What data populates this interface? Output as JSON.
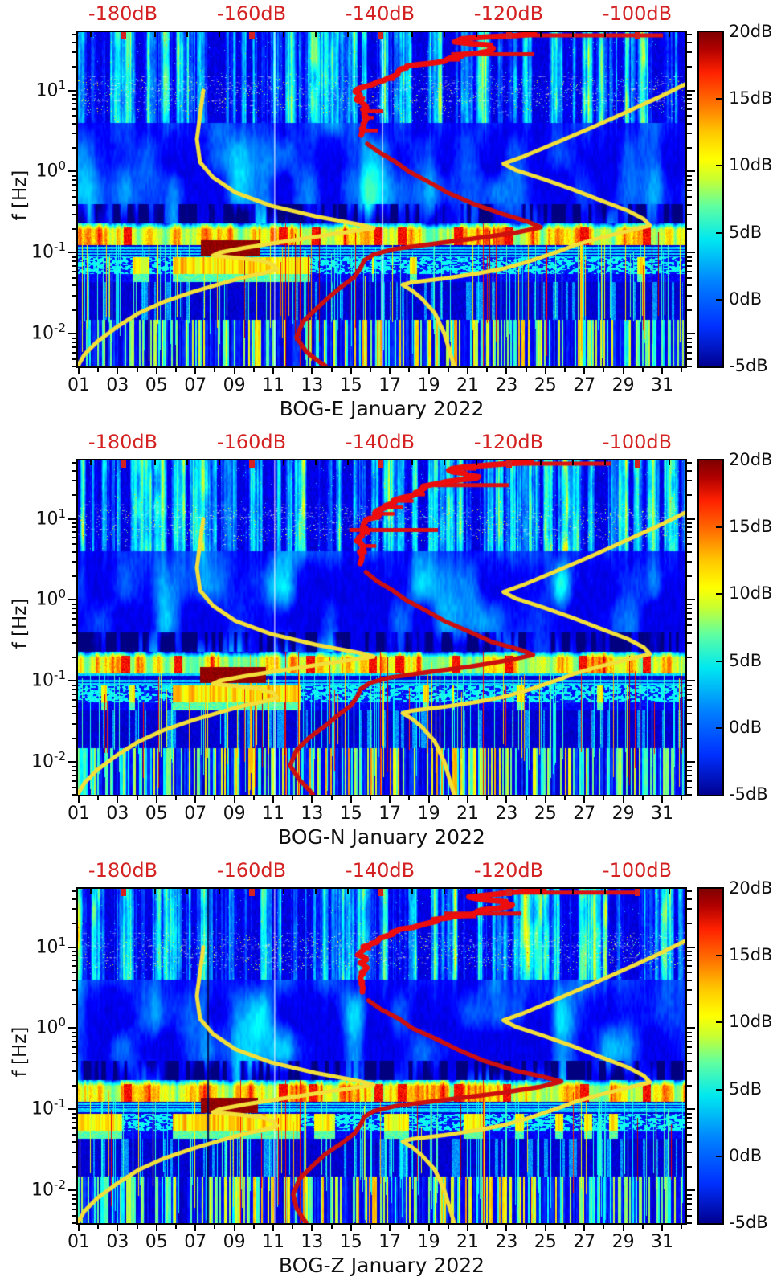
{
  "figure": {
    "background": "#ffffff",
    "label_red": "#d42222",
    "curve_yellow": "#f2df3a",
    "curve_red": "#cc1010",
    "text_color": "#111111"
  },
  "chart_data": {
    "type": "heatmap",
    "colormap": "jet",
    "x_axis": {
      "tick_labels": [
        "01",
        "03",
        "05",
        "07",
        "09",
        "11",
        "13",
        "15",
        "17",
        "19",
        "21",
        "23",
        "25",
        "27",
        "29",
        "31"
      ],
      "tick_days": [
        1,
        3,
        5,
        7,
        9,
        11,
        13,
        15,
        17,
        19,
        21,
        23,
        25,
        27,
        29,
        31
      ],
      "range_days": [
        1,
        32.3
      ]
    },
    "top_axis": {
      "unit": "dB",
      "tick_labels": [
        "-180dB",
        "-160dB",
        "-140dB",
        "-120dB",
        "-100dB"
      ],
      "tick_values_db": [
        -180,
        -160,
        -140,
        -120,
        -100
      ],
      "range_db": [
        -187.3,
        -92.3
      ]
    },
    "y_axis": {
      "label": "f [Hz]",
      "tick_exponents": [
        1,
        0,
        -1,
        -2
      ],
      "log10_range": [
        -2.405,
        1.72
      ]
    },
    "colorbar": {
      "tick_labels": [
        "20dB",
        "15dB",
        "10dB",
        "5dB",
        "0dB",
        "-5dB"
      ],
      "tick_values_db": [
        20,
        15,
        10,
        5,
        0,
        -5
      ],
      "range_db": [
        -5,
        20
      ]
    },
    "overlays": {
      "noise_model_low_f_db": [
        [
          10,
          -167.5
        ],
        [
          5,
          -168
        ],
        [
          2.5,
          -168.5
        ],
        [
          1.3,
          -168
        ],
        [
          0.85,
          -166
        ],
        [
          0.55,
          -162.5
        ],
        [
          0.38,
          -157
        ],
        [
          0.28,
          -150
        ],
        [
          0.22,
          -143
        ],
        [
          0.2,
          -141
        ],
        [
          0.17,
          -147
        ],
        [
          0.14,
          -154
        ],
        [
          0.115,
          -161
        ],
        [
          0.1,
          -165
        ],
        [
          0.092,
          -166
        ],
        [
          0.086,
          -162
        ],
        [
          0.08,
          -158.5
        ],
        [
          0.07,
          -156.5
        ],
        [
          0.062,
          -156
        ],
        [
          0.056,
          -158
        ],
        [
          0.05,
          -161
        ],
        [
          0.042,
          -164.5
        ],
        [
          0.033,
          -169
        ],
        [
          0.025,
          -173.5
        ],
        [
          0.018,
          -177.5
        ],
        [
          0.012,
          -181
        ],
        [
          0.008,
          -184
        ],
        [
          0.0055,
          -186
        ],
        [
          0.004,
          -187
        ]
      ],
      "noise_model_high_f_db": [
        [
          12,
          -92.5
        ],
        [
          8,
          -97
        ],
        [
          5.5,
          -101.5
        ],
        [
          3.5,
          -107
        ],
        [
          2.2,
          -113
        ],
        [
          1.5,
          -118
        ],
        [
          1.25,
          -120.8
        ],
        [
          1.05,
          -119
        ],
        [
          0.8,
          -114.5
        ],
        [
          0.6,
          -110
        ],
        [
          0.45,
          -106
        ],
        [
          0.33,
          -101.5
        ],
        [
          0.26,
          -99
        ],
        [
          0.215,
          -98
        ],
        [
          0.18,
          -102
        ],
        [
          0.15,
          -106
        ],
        [
          0.125,
          -109.5
        ],
        [
          0.105,
          -112
        ],
        [
          0.09,
          -114.5
        ],
        [
          0.075,
          -117.5
        ],
        [
          0.063,
          -121
        ],
        [
          0.055,
          -125
        ],
        [
          0.048,
          -130
        ],
        [
          0.043,
          -135
        ],
        [
          0.04,
          -136.5
        ],
        [
          0.034,
          -135
        ],
        [
          0.027,
          -133.5
        ],
        [
          0.018,
          -131.5
        ],
        [
          0.01,
          -130
        ],
        [
          0.004,
          -128.5
        ]
      ]
    },
    "panels": [
      {
        "station": "BOG-E",
        "title": "BOG-E January 2022",
        "seed": 11,
        "median_psd_f_db": [
          [
            50,
            -116
          ],
          [
            47,
            -122
          ],
          [
            44,
            -127
          ],
          [
            40,
            -130
          ],
          [
            36,
            -126
          ],
          [
            33,
            -124
          ],
          [
            30,
            -127
          ],
          [
            26,
            -130
          ],
          [
            22,
            -133
          ],
          [
            18,
            -136
          ],
          [
            15,
            -138
          ],
          [
            12,
            -141
          ],
          [
            10,
            -143
          ],
          [
            8,
            -144.5
          ],
          [
            6.5,
            -144
          ],
          [
            5,
            -143
          ],
          [
            4,
            -143.2
          ],
          [
            3,
            -143
          ],
          [
            2.2,
            -142
          ],
          [
            1.7,
            -140
          ],
          [
            1.3,
            -137.5
          ],
          [
            1,
            -135.5
          ],
          [
            0.75,
            -132.5
          ],
          [
            0.55,
            -129.5
          ],
          [
            0.4,
            -125.5
          ],
          [
            0.3,
            -121
          ],
          [
            0.24,
            -117
          ],
          [
            0.205,
            -115
          ],
          [
            0.175,
            -119
          ],
          [
            0.15,
            -125
          ],
          [
            0.13,
            -131
          ],
          [
            0.11,
            -138
          ],
          [
            0.095,
            -141
          ],
          [
            0.08,
            -142.5
          ],
          [
            0.065,
            -143
          ],
          [
            0.05,
            -144
          ],
          [
            0.038,
            -146
          ],
          [
            0.028,
            -148
          ],
          [
            0.02,
            -150
          ],
          [
            0.014,
            -152
          ],
          [
            0.009,
            -153
          ],
          [
            0.006,
            -151.5
          ],
          [
            0.0045,
            -149.5
          ],
          [
            0.004,
            -148.5
          ]
        ],
        "psd_spurs": [
          {
            "f_hz": 48,
            "to_db": -96
          },
          {
            "f_hz": 28,
            "to_db": -116
          }
        ],
        "hot_blob": {
          "day_start": 7.25,
          "day_end": 10.3,
          "f_low_hz": 0.09,
          "f_high_hz": 0.145
        },
        "band_hot_spot_days": [
          3.5,
          11.5,
          13.2,
          16.4,
          17.6,
          20.5,
          23.1,
          27,
          30.2
        ],
        "red_spike_days": [
          11.6,
          12.35,
          21.8,
          26.7
        ],
        "white_line_days": [
          11.05,
          16.6
        ],
        "bright_band_days": [
          5.8,
          12.4
        ]
      },
      {
        "station": "BOG-N",
        "title": "BOG-N January 2022",
        "seed": 23,
        "median_psd_f_db": [
          [
            50,
            -117
          ],
          [
            47,
            -123
          ],
          [
            44,
            -128
          ],
          [
            40,
            -130.5
          ],
          [
            36,
            -127
          ],
          [
            33,
            -125
          ],
          [
            30,
            -128
          ],
          [
            26,
            -131
          ],
          [
            22,
            -134
          ],
          [
            18,
            -137
          ],
          [
            15,
            -139
          ],
          [
            12,
            -141.5
          ],
          [
            10,
            -143
          ],
          [
            8,
            -144.5
          ],
          [
            6.5,
            -144
          ],
          [
            5,
            -143.2
          ],
          [
            4,
            -143.4
          ],
          [
            3,
            -143.2
          ],
          [
            2.2,
            -142.2
          ],
          [
            1.7,
            -140.5
          ],
          [
            1.3,
            -138
          ],
          [
            1,
            -136
          ],
          [
            0.75,
            -133
          ],
          [
            0.55,
            -130
          ],
          [
            0.4,
            -126
          ],
          [
            0.3,
            -122.5
          ],
          [
            0.24,
            -118
          ],
          [
            0.21,
            -116.2
          ],
          [
            0.18,
            -120
          ],
          [
            0.15,
            -126
          ],
          [
            0.13,
            -132
          ],
          [
            0.11,
            -138.5
          ],
          [
            0.095,
            -141.5
          ],
          [
            0.08,
            -143
          ],
          [
            0.065,
            -143.5
          ],
          [
            0.05,
            -144.5
          ],
          [
            0.038,
            -146.5
          ],
          [
            0.028,
            -148.5
          ],
          [
            0.02,
            -151
          ],
          [
            0.014,
            -153
          ],
          [
            0.009,
            -154
          ],
          [
            0.006,
            -152.5
          ],
          [
            0.0045,
            -151
          ],
          [
            0.004,
            -150.5
          ]
        ],
        "psd_spurs": [
          {
            "f_hz": 48,
            "to_db": -104
          },
          {
            "f_hz": 26,
            "to_db": -120
          },
          {
            "f_hz": 7.3,
            "to_db": -131
          }
        ],
        "hot_blob": {
          "day_start": 7.2,
          "day_end": 10.6,
          "f_low_hz": 0.095,
          "f_high_hz": 0.15
        },
        "band_hot_spot_days": [
          3.4,
          6.1,
          12.9,
          16.1,
          17.5,
          20.4,
          23.1,
          26.9,
          30.2
        ],
        "red_spike_days": [
          11.6,
          12.3,
          16.5,
          21.8
        ],
        "white_line_days": [
          11.05
        ],
        "bright_band_days": [
          5.8,
          12.4
        ]
      },
      {
        "station": "BOG-Z",
        "title": "BOG-Z January 2022",
        "seed": 37,
        "median_psd_f_db": [
          [
            50,
            -115
          ],
          [
            47,
            -121
          ],
          [
            44,
            -126
          ],
          [
            40,
            -129
          ],
          [
            36,
            -125.5
          ],
          [
            33,
            -123.5
          ],
          [
            30,
            -126.5
          ],
          [
            26,
            -129.5
          ],
          [
            22,
            -132.5
          ],
          [
            18,
            -135.5
          ],
          [
            15,
            -137.5
          ],
          [
            12,
            -140.5
          ],
          [
            10,
            -142.5
          ],
          [
            8,
            -144
          ],
          [
            6.5,
            -143.5
          ],
          [
            5,
            -142.8
          ],
          [
            4,
            -143
          ],
          [
            3,
            -142.8
          ],
          [
            2.2,
            -141.8
          ],
          [
            1.7,
            -139.8
          ],
          [
            1.3,
            -137
          ],
          [
            1,
            -135
          ],
          [
            0.75,
            -131.5
          ],
          [
            0.55,
            -128
          ],
          [
            0.4,
            -124
          ],
          [
            0.3,
            -119
          ],
          [
            0.25,
            -114.5
          ],
          [
            0.22,
            -111.8
          ],
          [
            0.19,
            -115
          ],
          [
            0.16,
            -121
          ],
          [
            0.13,
            -130
          ],
          [
            0.11,
            -137.5
          ],
          [
            0.095,
            -141
          ],
          [
            0.08,
            -142.5
          ],
          [
            0.065,
            -143
          ],
          [
            0.05,
            -144
          ],
          [
            0.038,
            -146
          ],
          [
            0.028,
            -148.5
          ],
          [
            0.02,
            -150.5
          ],
          [
            0.014,
            -152.5
          ],
          [
            0.009,
            -153.5
          ],
          [
            0.006,
            -153
          ],
          [
            0.0045,
            -152
          ],
          [
            0.004,
            -151.5
          ]
        ],
        "psd_spurs": [
          {
            "f_hz": 47,
            "to_db": -100
          },
          {
            "f_hz": 26,
            "to_db": -118
          }
        ],
        "hot_blob": {
          "day_start": 7.25,
          "day_end": 10.2,
          "f_low_hz": 0.09,
          "f_high_hz": 0.14
        },
        "band_hot_spot_days": [
          3.5,
          11.5,
          13,
          16.4,
          17.6,
          20.5,
          23,
          27,
          30.2
        ],
        "red_spike_days": [
          9.3,
          11.6,
          12.35,
          21.8,
          26.7
        ],
        "white_line_days": [
          11.05
        ],
        "dark_line_day": 7.65,
        "bright_band_days": [
          5.8,
          12.4
        ]
      }
    ]
  }
}
